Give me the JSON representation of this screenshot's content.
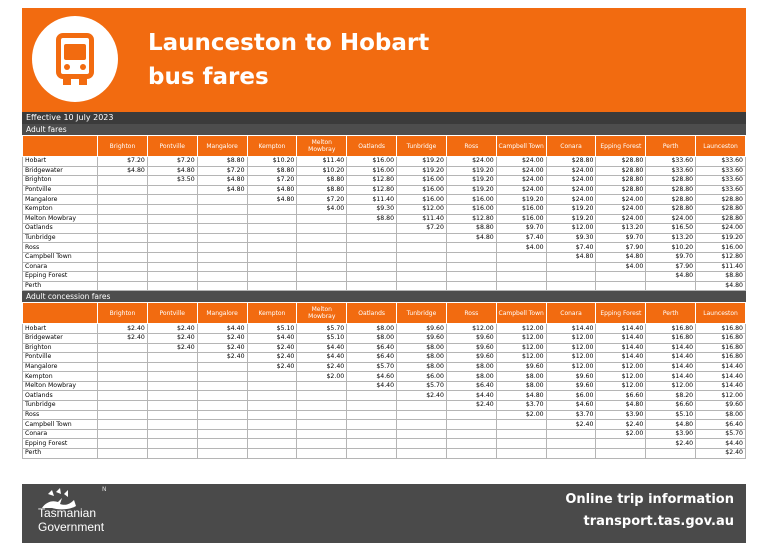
{
  "header": {
    "title_line1": "Launceston to Hobart",
    "title_line2": "bus fares",
    "logo_icon": "bus-icon",
    "color": "#f26b10"
  },
  "effective": "Effective 10 July 2023",
  "columns": [
    "Brighton",
    "Pontville",
    "Mangalore",
    "Kempton",
    "Melton Mowbray",
    "Oatlands",
    "Tunbridge",
    "Ross",
    "Campbell Town",
    "Conara",
    "Epping Forest",
    "Perth",
    "Launceston"
  ],
  "rows": [
    "Hobart",
    "Bridgewater",
    "Brighton",
    "Pontville",
    "Mangalore",
    "Kempton",
    "Melton Mowbray",
    "Oatlands",
    "Tunbridge",
    "Ross",
    "Campbell Town",
    "Conara",
    "Epping Forest",
    "Perth"
  ],
  "adult": {
    "label": "Adult fares",
    "values": [
      [
        "$7.20",
        "$7.20",
        "$8.80",
        "$10.20",
        "$11.40",
        "$16.00",
        "$19.20",
        "$24.00",
        "$24.00",
        "$28.80",
        "$28.80",
        "$33.60",
        "$33.60"
      ],
      [
        "$4.80",
        "$4.80",
        "$7.20",
        "$8.80",
        "$10.20",
        "$16.00",
        "$19.20",
        "$19.20",
        "$24.00",
        "$24.00",
        "$28.80",
        "$33.60",
        "$33.60"
      ],
      [
        "",
        "$3.50",
        "$4.80",
        "$7.20",
        "$8.80",
        "$12.80",
        "$16.00",
        "$19.20",
        "$24.00",
        "$24.00",
        "$28.80",
        "$28.80",
        "$33.60"
      ],
      [
        "",
        "",
        "$4.80",
        "$4.80",
        "$8.80",
        "$12.80",
        "$16.00",
        "$19.20",
        "$24.00",
        "$24.00",
        "$28.80",
        "$28.80",
        "$33.60"
      ],
      [
        "",
        "",
        "",
        "$4.80",
        "$7.20",
        "$11.40",
        "$16.00",
        "$16.00",
        "$19.20",
        "$24.00",
        "$24.00",
        "$28.80",
        "$28.80"
      ],
      [
        "",
        "",
        "",
        "",
        "$4.00",
        "$9.30",
        "$12.00",
        "$16.00",
        "$16.00",
        "$19.20",
        "$24.00",
        "$28.80",
        "$28.80"
      ],
      [
        "",
        "",
        "",
        "",
        "",
        "$8.80",
        "$11.40",
        "$12.80",
        "$16.00",
        "$19.20",
        "$24.00",
        "$24.00",
        "$28.80"
      ],
      [
        "",
        "",
        "",
        "",
        "",
        "",
        "$7.20",
        "$8.80",
        "$9.70",
        "$12.00",
        "$13.20",
        "$16.50",
        "$24.00"
      ],
      [
        "",
        "",
        "",
        "",
        "",
        "",
        "",
        "$4.80",
        "$7.40",
        "$9.30",
        "$9.70",
        "$13.20",
        "$19.20"
      ],
      [
        "",
        "",
        "",
        "",
        "",
        "",
        "",
        "",
        "$4.00",
        "$7.40",
        "$7.90",
        "$10.20",
        "$16.00"
      ],
      [
        "",
        "",
        "",
        "",
        "",
        "",
        "",
        "",
        "",
        "$4.80",
        "$4.80",
        "$9.70",
        "$12.80"
      ],
      [
        "",
        "",
        "",
        "",
        "",
        "",
        "",
        "",
        "",
        "",
        "$4.00",
        "$7.90",
        "$11.40"
      ],
      [
        "",
        "",
        "",
        "",
        "",
        "",
        "",
        "",
        "",
        "",
        "",
        "$4.80",
        "$8.80"
      ],
      [
        "",
        "",
        "",
        "",
        "",
        "",
        "",
        "",
        "",
        "",
        "",
        "",
        "$4.80"
      ]
    ]
  },
  "concession": {
    "label": "Adult concession fares",
    "values": [
      [
        "$2.40",
        "$2.40",
        "$4.40",
        "$5.10",
        "$5.70",
        "$8.00",
        "$9.60",
        "$12.00",
        "$12.00",
        "$14.40",
        "$14.40",
        "$16.80",
        "$16.80"
      ],
      [
        "$2.40",
        "$2.40",
        "$2.40",
        "$4.40",
        "$5.10",
        "$8.00",
        "$9.60",
        "$9.60",
        "$12.00",
        "$12.00",
        "$14.40",
        "$16.80",
        "$16.80"
      ],
      [
        "",
        "$2.40",
        "$2.40",
        "$2.40",
        "$4.40",
        "$6.40",
        "$8.00",
        "$9.60",
        "$12.00",
        "$12.00",
        "$14.40",
        "$14.40",
        "$16.80"
      ],
      [
        "",
        "",
        "$2.40",
        "$2.40",
        "$4.40",
        "$6.40",
        "$8.00",
        "$9.60",
        "$12.00",
        "$12.00",
        "$14.40",
        "$14.40",
        "$16.80"
      ],
      [
        "",
        "",
        "",
        "$2.40",
        "$2.40",
        "$5.70",
        "$8.00",
        "$8.00",
        "$9.60",
        "$12.00",
        "$12.00",
        "$14.40",
        "$14.40"
      ],
      [
        "",
        "",
        "",
        "",
        "$2.00",
        "$4.60",
        "$6.00",
        "$8.00",
        "$8.00",
        "$9.60",
        "$12.00",
        "$14.40",
        "$14.40"
      ],
      [
        "",
        "",
        "",
        "",
        "",
        "$4.40",
        "$5.70",
        "$6.40",
        "$8.00",
        "$9.60",
        "$12.00",
        "$12.00",
        "$14.40"
      ],
      [
        "",
        "",
        "",
        "",
        "",
        "",
        "$2.40",
        "$4.40",
        "$4.80",
        "$6.00",
        "$6.60",
        "$8.20",
        "$12.00"
      ],
      [
        "",
        "",
        "",
        "",
        "",
        "",
        "",
        "$2.40",
        "$3.70",
        "$4.60",
        "$4.80",
        "$6.60",
        "$9.60"
      ],
      [
        "",
        "",
        "",
        "",
        "",
        "",
        "",
        "",
        "$2.00",
        "$3.70",
        "$3.90",
        "$5.10",
        "$8.00"
      ],
      [
        "",
        "",
        "",
        "",
        "",
        "",
        "",
        "",
        "",
        "$2.40",
        "$2.40",
        "$4.80",
        "$6.40"
      ],
      [
        "",
        "",
        "",
        "",
        "",
        "",
        "",
        "",
        "",
        "",
        "$2.00",
        "$3.90",
        "$5.70"
      ],
      [
        "",
        "",
        "",
        "",
        "",
        "",
        "",
        "",
        "",
        "",
        "",
        "$2.40",
        "$4.40"
      ],
      [
        "",
        "",
        "",
        "",
        "",
        "",
        "",
        "",
        "",
        "",
        "",
        "",
        "$2.40"
      ]
    ]
  },
  "footer": {
    "gov_line1": "Tasmanian",
    "gov_line2": "Government",
    "mark": "N",
    "online": "Online trip information",
    "website": "transport.tas.gov.au",
    "logo_icon": "tasmanian-tiger-icon"
  }
}
